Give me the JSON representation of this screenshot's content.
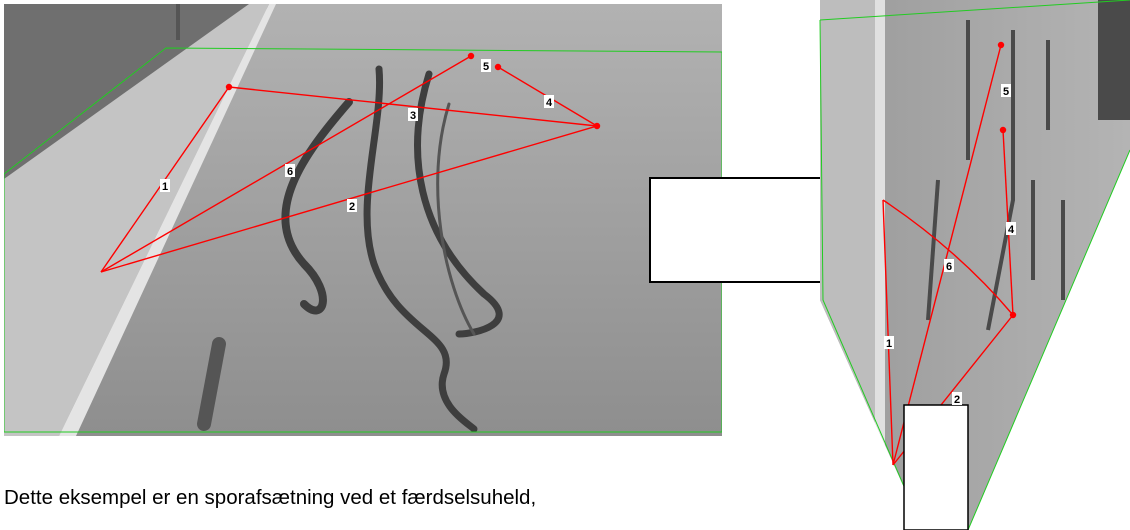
{
  "left_image": {
    "labels": [
      "1",
      "2",
      "3",
      "4",
      "5",
      "6"
    ]
  },
  "right_image": {
    "labels": [
      "1",
      "2",
      "4",
      "5",
      "6"
    ]
  },
  "caption": {
    "line1": "Dette eksempel er en sporafsætning ved et færdselsuheld,"
  },
  "colors": {
    "measure_line": "#ff0000",
    "frame": "#00cc00",
    "asphalt": "#9a9a9a",
    "sidewalk": "#c6c6c6"
  }
}
